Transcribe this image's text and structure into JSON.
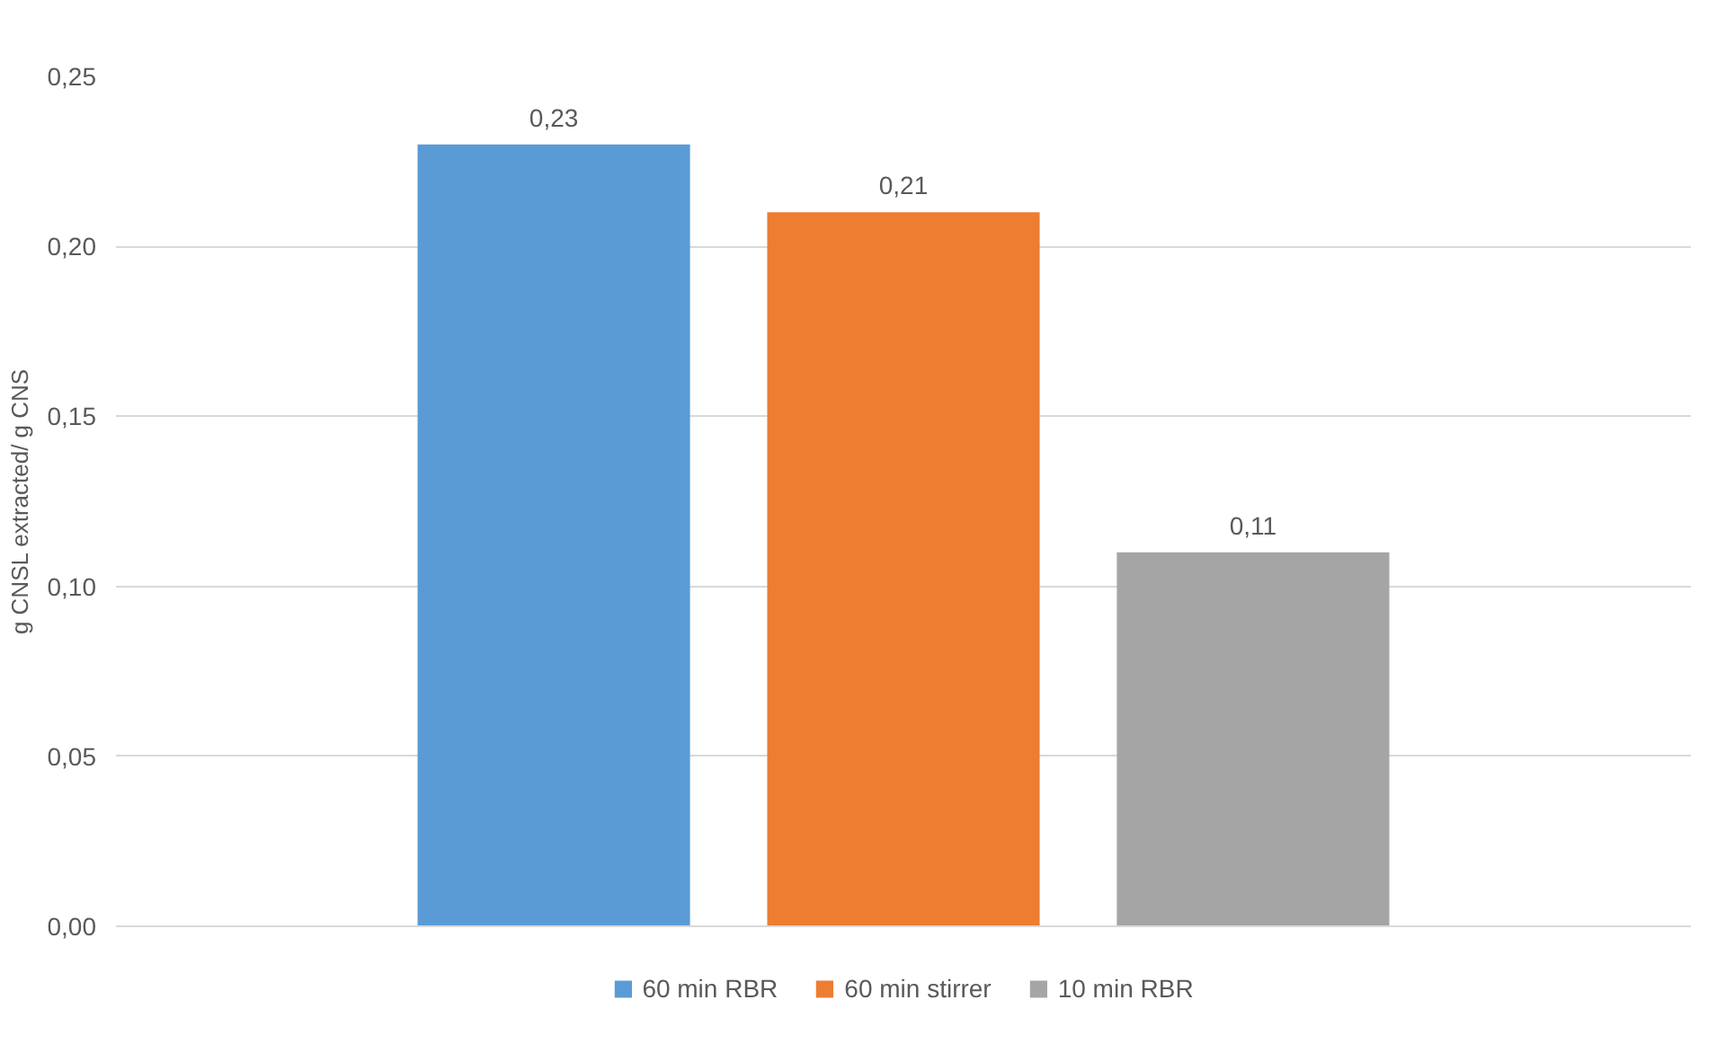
{
  "chart_data": {
    "type": "bar",
    "ylabel": "g CNSL extracted/ g CNS",
    "categories": [
      null
    ],
    "series": [
      {
        "name": "60 min RBR",
        "color": "#5b9bd5",
        "values": [
          0.23
        ],
        "value_labels": [
          "0,23"
        ]
      },
      {
        "name": "60 min stirrer",
        "color": "#ed7d31",
        "values": [
          0.21
        ],
        "value_labels": [
          "0,21"
        ]
      },
      {
        "name": "10 min RBR",
        "color": "#a5a5a5",
        "values": [
          0.11
        ],
        "value_labels": [
          "0,11"
        ]
      }
    ],
    "ylim": [
      0,
      0.25
    ],
    "yticks": [
      {
        "value": 0,
        "label": "0,00"
      },
      {
        "value": 0.05,
        "label": "0,05"
      },
      {
        "value": 0.1,
        "label": "0,10"
      },
      {
        "value": 0.15,
        "label": "0,15"
      },
      {
        "value": 0.2,
        "label": "0,20"
      },
      {
        "value": 0.25,
        "label": "0,25"
      }
    ],
    "grid": "y",
    "legend": "bottom"
  }
}
